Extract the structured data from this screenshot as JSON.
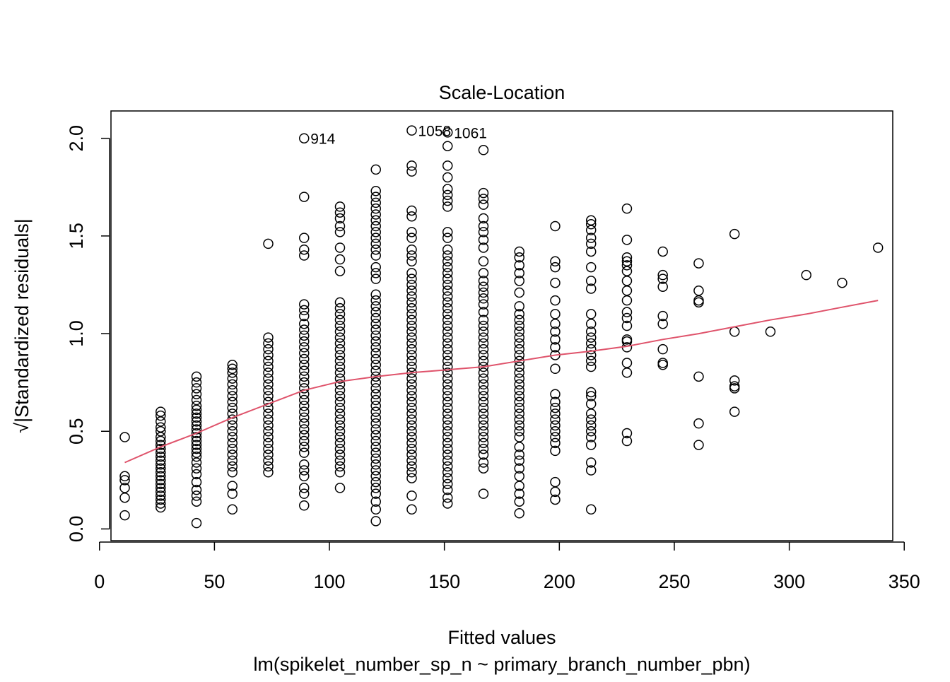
{
  "chart_data": {
    "type": "scatter",
    "title": "Scale-Location",
    "xlabel": "Fitted values",
    "subtitle": "lm(spikelet_number_sp_n ~ primary_branch_number_pbn)",
    "ylabel": "√|Standardized residuals|",
    "xlim": [
      5,
      345
    ],
    "ylim": [
      -0.06,
      2.14
    ],
    "x_ticks": [
      0,
      50,
      100,
      150,
      200,
      250,
      300,
      350
    ],
    "y_ticks": [
      0.0,
      0.5,
      1.0,
      1.5,
      2.0
    ],
    "x_tick_labels": [
      "0",
      "50",
      "100",
      "150",
      "200",
      "250",
      "300",
      "350"
    ],
    "y_tick_labels": [
      "0.0",
      "0.5",
      "1.0",
      "1.5",
      "2.0"
    ],
    "grid": false,
    "point_color": "#000000",
    "smooth_color": "#DF536B",
    "columns": [
      {
        "x": 11,
        "y": [
          0.47,
          0.27,
          0.25,
          0.21,
          0.16,
          0.07
        ]
      },
      {
        "x": 26.6,
        "y": [
          0.6,
          0.58,
          0.55,
          0.52,
          0.5,
          0.47,
          0.45,
          0.43,
          0.41,
          0.39,
          0.37,
          0.35,
          0.33,
          0.31,
          0.29,
          0.27,
          0.25,
          0.23,
          0.21,
          0.19,
          0.17,
          0.15,
          0.13,
          0.11
        ]
      },
      {
        "x": 42.2,
        "y": [
          0.78,
          0.75,
          0.72,
          0.69,
          0.66,
          0.63,
          0.61,
          0.59,
          0.57,
          0.55,
          0.53,
          0.51,
          0.49,
          0.47,
          0.45,
          0.43,
          0.41,
          0.39,
          0.37,
          0.34,
          0.31,
          0.28,
          0.24,
          0.2,
          0.17,
          0.14,
          0.03
        ]
      },
      {
        "x": 57.8,
        "y": [
          0.84,
          0.82,
          0.8,
          0.77,
          0.74,
          0.71,
          0.68,
          0.65,
          0.62,
          0.59,
          0.56,
          0.53,
          0.5,
          0.47,
          0.44,
          0.41,
          0.38,
          0.35,
          0.32,
          0.29,
          0.22,
          0.18,
          0.1
        ]
      },
      {
        "x": 73.4,
        "y": [
          1.46,
          0.98,
          0.95,
          0.92,
          0.89,
          0.86,
          0.83,
          0.8,
          0.77,
          0.74,
          0.71,
          0.68,
          0.65,
          0.62,
          0.59,
          0.56,
          0.53,
          0.5,
          0.47,
          0.44,
          0.41,
          0.38,
          0.35,
          0.32,
          0.29
        ]
      },
      {
        "x": 89.0,
        "y": [
          2.0,
          1.7,
          1.49,
          1.43,
          1.4,
          1.15,
          1.12,
          1.09,
          1.05,
          1.02,
          0.99,
          0.96,
          0.93,
          0.9,
          0.87,
          0.84,
          0.81,
          0.78,
          0.75,
          0.72,
          0.69,
          0.66,
          0.63,
          0.6,
          0.57,
          0.54,
          0.51,
          0.48,
          0.45,
          0.42,
          0.39,
          0.33,
          0.3,
          0.27,
          0.21,
          0.18,
          0.12
        ]
      },
      {
        "x": 104.6,
        "y": [
          1.65,
          1.62,
          1.59,
          1.55,
          1.52,
          1.44,
          1.38,
          1.32,
          1.16,
          1.13,
          1.1,
          1.07,
          1.04,
          1.01,
          0.98,
          0.95,
          0.92,
          0.89,
          0.86,
          0.83,
          0.8,
          0.77,
          0.74,
          0.71,
          0.68,
          0.65,
          0.62,
          0.59,
          0.56,
          0.53,
          0.5,
          0.47,
          0.44,
          0.41,
          0.38,
          0.35,
          0.32,
          0.29,
          0.21
        ]
      },
      {
        "x": 120.2,
        "y": [
          1.84,
          1.73,
          1.7,
          1.67,
          1.64,
          1.61,
          1.58,
          1.55,
          1.52,
          1.49,
          1.46,
          1.43,
          1.4,
          1.34,
          1.31,
          1.28,
          1.2,
          1.17,
          1.14,
          1.11,
          1.08,
          1.05,
          1.02,
          0.99,
          0.96,
          0.93,
          0.9,
          0.87,
          0.84,
          0.81,
          0.78,
          0.75,
          0.72,
          0.69,
          0.66,
          0.63,
          0.6,
          0.57,
          0.54,
          0.51,
          0.48,
          0.45,
          0.42,
          0.39,
          0.36,
          0.33,
          0.3,
          0.27,
          0.24,
          0.21,
          0.18,
          0.14,
          0.1,
          0.04
        ]
      },
      {
        "x": 135.8,
        "y": [
          2.04,
          1.86,
          1.83,
          1.63,
          1.6,
          1.52,
          1.49,
          1.43,
          1.4,
          1.37,
          1.31,
          1.28,
          1.25,
          1.22,
          1.19,
          1.16,
          1.13,
          1.1,
          1.07,
          1.04,
          1.01,
          0.98,
          0.95,
          0.92,
          0.89,
          0.86,
          0.83,
          0.8,
          0.77,
          0.74,
          0.71,
          0.68,
          0.65,
          0.62,
          0.59,
          0.56,
          0.53,
          0.5,
          0.47,
          0.44,
          0.41,
          0.38,
          0.35,
          0.32,
          0.29,
          0.26,
          0.17,
          0.1
        ]
      },
      {
        "x": 151.4,
        "y": [
          2.03,
          1.96,
          1.86,
          1.8,
          1.74,
          1.71,
          1.68,
          1.65,
          1.52,
          1.49,
          1.43,
          1.4,
          1.37,
          1.34,
          1.31,
          1.28,
          1.25,
          1.22,
          1.19,
          1.16,
          1.13,
          1.1,
          1.07,
          1.04,
          1.01,
          0.98,
          0.95,
          0.92,
          0.89,
          0.86,
          0.83,
          0.8,
          0.77,
          0.74,
          0.71,
          0.68,
          0.65,
          0.62,
          0.59,
          0.56,
          0.53,
          0.5,
          0.47,
          0.44,
          0.41,
          0.38,
          0.35,
          0.32,
          0.29,
          0.26,
          0.23,
          0.2,
          0.16,
          0.13
        ]
      },
      {
        "x": 167.0,
        "y": [
          1.94,
          1.72,
          1.69,
          1.66,
          1.59,
          1.55,
          1.52,
          1.48,
          1.44,
          1.37,
          1.31,
          1.27,
          1.24,
          1.21,
          1.18,
          1.15,
          1.11,
          1.07,
          1.04,
          1.01,
          0.98,
          0.95,
          0.92,
          0.89,
          0.86,
          0.83,
          0.8,
          0.77,
          0.74,
          0.71,
          0.68,
          0.65,
          0.62,
          0.59,
          0.56,
          0.53,
          0.5,
          0.47,
          0.44,
          0.41,
          0.38,
          0.34,
          0.31,
          0.18
        ]
      },
      {
        "x": 182.6,
        "y": [
          1.42,
          1.39,
          1.35,
          1.31,
          1.27,
          1.21,
          1.14,
          1.1,
          1.07,
          1.04,
          1.01,
          0.98,
          0.95,
          0.92,
          0.89,
          0.86,
          0.83,
          0.8,
          0.77,
          0.74,
          0.71,
          0.68,
          0.65,
          0.62,
          0.59,
          0.56,
          0.53,
          0.5,
          0.47,
          0.42,
          0.38,
          0.35,
          0.31,
          0.27,
          0.22,
          0.18,
          0.14,
          0.08
        ]
      },
      {
        "x": 198.2,
        "y": [
          1.55,
          1.37,
          1.34,
          1.26,
          1.17,
          1.1,
          1.05,
          1.01,
          0.97,
          0.93,
          0.89,
          0.82,
          0.69,
          0.65,
          0.62,
          0.59,
          0.56,
          0.53,
          0.5,
          0.47,
          0.44,
          0.4,
          0.24,
          0.19,
          0.15
        ]
      },
      {
        "x": 213.8,
        "y": [
          1.58,
          1.56,
          1.53,
          1.49,
          1.46,
          1.42,
          1.34,
          1.27,
          1.23,
          1.1,
          1.05,
          1.01,
          0.98,
          0.95,
          0.92,
          0.89,
          0.86,
          0.83,
          0.7,
          0.68,
          0.64,
          0.59,
          0.56,
          0.53,
          0.5,
          0.47,
          0.43,
          0.34,
          0.3,
          0.1
        ]
      },
      {
        "x": 229.4,
        "y": [
          1.64,
          1.48,
          1.39,
          1.37,
          1.35,
          1.32,
          1.27,
          1.22,
          1.17,
          1.11,
          1.08,
          1.04,
          0.97,
          0.96,
          0.93,
          0.85,
          0.8,
          0.49,
          0.45
        ]
      },
      {
        "x": 245.0,
        "y": [
          1.42,
          1.3,
          1.28,
          1.24,
          1.09,
          1.05,
          0.92,
          0.85,
          0.84
        ]
      },
      {
        "x": 260.6,
        "y": [
          1.36,
          1.22,
          1.17,
          1.16,
          0.78,
          0.54,
          0.43
        ]
      },
      {
        "x": 276.2,
        "y": [
          1.51,
          1.01,
          0.76,
          0.73,
          0.72,
          0.6
        ]
      },
      {
        "x": 291.8,
        "y": [
          1.01
        ]
      },
      {
        "x": 307.4,
        "y": [
          1.3
        ]
      },
      {
        "x": 323.0,
        "y": [
          1.26
        ]
      },
      {
        "x": 338.6,
        "y": [
          1.44
        ]
      }
    ],
    "smooth": {
      "x": [
        11,
        26.6,
        42.2,
        57.8,
        73.4,
        89.0,
        104.6,
        120.2,
        135.8,
        151.4,
        167.0,
        182.6,
        198.2,
        213.8,
        229.4,
        245.0,
        260.6,
        276.2,
        291.8,
        307.4,
        323.0,
        338.6
      ],
      "y": [
        0.34,
        0.42,
        0.49,
        0.57,
        0.64,
        0.71,
        0.755,
        0.78,
        0.8,
        0.815,
        0.83,
        0.86,
        0.89,
        0.91,
        0.935,
        0.97,
        1.0,
        1.035,
        1.07,
        1.1,
        1.135,
        1.17
      ]
    },
    "annotations": [
      {
        "label": "914",
        "x": 89.0,
        "y": 2.0
      },
      {
        "label": "1058",
        "x": 135.8,
        "y": 2.04
      },
      {
        "label": "1061",
        "x": 151.4,
        "y": 2.03
      }
    ]
  }
}
